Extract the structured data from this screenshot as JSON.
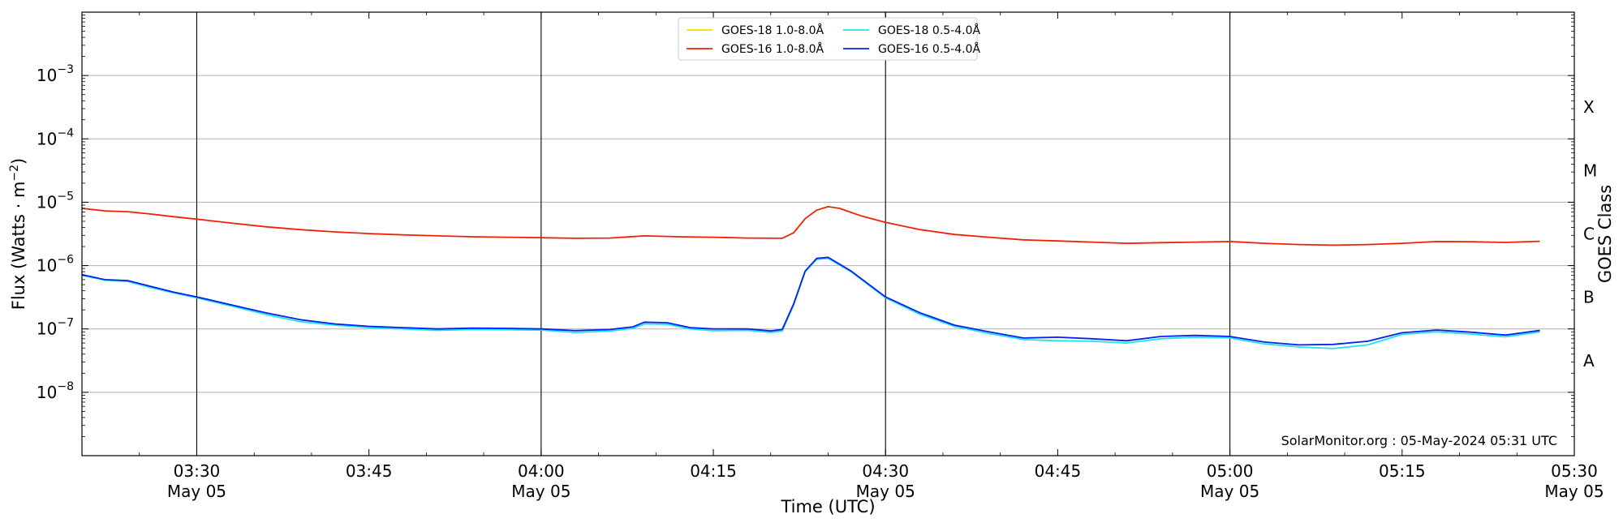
{
  "chart_data": {
    "type": "line",
    "title": "",
    "xlabel": "Time (UTC)",
    "ylabel": "Flux (Watts · m",
    "ylabel_superscript": "−2",
    "ylabel_close": ")",
    "y2label": "GOES Class",
    "yscale": "log",
    "ylim": [
      1e-09,
      0.01
    ],
    "xlim": [
      "2024-05-05 03:20",
      "2024-05-05 05:30"
    ],
    "grid": "horizontal",
    "legend_position": "top-center",
    "y_ticks": [
      {
        "value": 1e-08,
        "base": "10",
        "exp": "−8"
      },
      {
        "value": 1e-07,
        "base": "10",
        "exp": "−7"
      },
      {
        "value": 1e-06,
        "base": "10",
        "exp": "−6"
      },
      {
        "value": 1e-05,
        "base": "10",
        "exp": "−5"
      },
      {
        "value": 0.0001,
        "base": "10",
        "exp": "−4"
      },
      {
        "value": 0.001,
        "base": "10",
        "exp": "−3"
      }
    ],
    "x_ticks": [
      {
        "time": "03:30",
        "line1": "03:30",
        "line2": "May 05"
      },
      {
        "time": "03:45",
        "line1": "03:45",
        "line2": ""
      },
      {
        "time": "04:00",
        "line1": "04:00",
        "line2": "May 05"
      },
      {
        "time": "04:15",
        "line1": "04:15",
        "line2": ""
      },
      {
        "time": "04:30",
        "line1": "04:30",
        "line2": "May 05"
      },
      {
        "time": "04:45",
        "line1": "04:45",
        "line2": ""
      },
      {
        "time": "05:00",
        "line1": "05:00",
        "line2": "May 05"
      },
      {
        "time": "05:15",
        "line1": "05:15",
        "line2": ""
      },
      {
        "time": "05:30",
        "line1": "05:30",
        "line2": "May 05"
      }
    ],
    "vertical_lines": [
      "03:30",
      "04:00",
      "04:30",
      "05:00"
    ],
    "goes_classes": [
      {
        "label": "A",
        "value": 3.16e-08
      },
      {
        "label": "B",
        "value": 3.16e-07
      },
      {
        "label": "C",
        "value": 3.16e-06
      },
      {
        "label": "M",
        "value": 3.16e-05
      },
      {
        "label": "X",
        "value": 0.000316
      }
    ],
    "series": [
      {
        "name": "GOES-18 1.0-8.0Å",
        "color": "#ffd700",
        "x": [],
        "values": []
      },
      {
        "name": "GOES-16 1.0-8.0Å",
        "color": "#ee2200",
        "x": [
          "03:20",
          "03:22",
          "03:24",
          "03:26",
          "03:28",
          "03:30",
          "03:33",
          "03:36",
          "03:39",
          "03:42",
          "03:45",
          "03:48",
          "03:51",
          "03:54",
          "03:57",
          "04:00",
          "04:03",
          "04:06",
          "04:09",
          "04:12",
          "04:15",
          "04:18",
          "04:21",
          "04:22",
          "04:23",
          "04:24",
          "04:25",
          "04:26",
          "04:27",
          "04:28",
          "04:30",
          "04:33",
          "04:36",
          "04:39",
          "04:42",
          "04:45",
          "04:48",
          "04:51",
          "04:54",
          "04:57",
          "05:00",
          "05:03",
          "05:06",
          "05:09",
          "05:12",
          "05:15",
          "05:18",
          "05:21",
          "05:24",
          "05:27"
        ],
        "values": [
          8e-06,
          7.3e-06,
          7.1e-06,
          6.5e-06,
          5.9e-06,
          5.4e-06,
          4.7e-06,
          4.1e-06,
          3.7e-06,
          3.4e-06,
          3.2e-06,
          3.05e-06,
          2.95e-06,
          2.85e-06,
          2.8e-06,
          2.75e-06,
          2.7e-06,
          2.72e-06,
          2.95e-06,
          2.85e-06,
          2.8e-06,
          2.72e-06,
          2.7e-06,
          3.3e-06,
          5.5e-06,
          7.5e-06,
          8.5e-06,
          8e-06,
          6.9e-06,
          6e-06,
          4.8e-06,
          3.7e-06,
          3.1e-06,
          2.8e-06,
          2.55e-06,
          2.45e-06,
          2.35e-06,
          2.25e-06,
          2.3e-06,
          2.35e-06,
          2.4e-06,
          2.25e-06,
          2.15e-06,
          2.1e-06,
          2.15e-06,
          2.25e-06,
          2.4e-06,
          2.38e-06,
          2.32e-06,
          2.42e-06
        ]
      },
      {
        "name": "GOES-18 0.5-4.0Å",
        "color": "#22e0ee",
        "x": [
          "03:20",
          "03:22",
          "03:24",
          "03:26",
          "03:28",
          "03:30",
          "03:33",
          "03:36",
          "03:39",
          "03:42",
          "03:45",
          "03:48",
          "03:51",
          "03:54",
          "03:57",
          "04:00",
          "04:03",
          "04:06",
          "04:08",
          "04:09",
          "04:11",
          "04:13",
          "04:15",
          "04:18",
          "04:20",
          "04:21",
          "04:22",
          "04:23",
          "04:24",
          "04:25",
          "04:27",
          "04:30",
          "04:33",
          "04:36",
          "04:39",
          "04:42",
          "04:45",
          "04:48",
          "04:51",
          "04:54",
          "04:57",
          "05:00",
          "05:03",
          "05:06",
          "05:09",
          "05:12",
          "05:15",
          "05:18",
          "05:21",
          "05:24",
          "05:27"
        ],
        "values": [
          7e-07,
          5.9e-07,
          5.6e-07,
          4.5e-07,
          3.7e-07,
          3.1e-07,
          2.3e-07,
          1.7e-07,
          1.3e-07,
          1.15e-07,
          1.05e-07,
          1e-07,
          9.5e-08,
          9.8e-08,
          9.7e-08,
          9.6e-08,
          8.8e-08,
          9.3e-08,
          1.02e-07,
          1.2e-07,
          1.18e-07,
          1e-07,
          9.4e-08,
          9.5e-08,
          8.8e-08,
          9.3e-08,
          2.4e-07,
          8e-07,
          1.25e-06,
          1.3e-06,
          8e-07,
          3.1e-07,
          1.7e-07,
          1.1e-07,
          8.5e-08,
          6.8e-08,
          6.5e-08,
          6.4e-08,
          6e-08,
          7e-08,
          7.4e-08,
          7.2e-08,
          5.8e-08,
          5.2e-08,
          4.9e-08,
          5.6e-08,
          8.2e-08,
          9e-08,
          8.3e-08,
          7.5e-08,
          9e-08
        ]
      },
      {
        "name": "GOES-16 0.5-4.0Å",
        "color": "#0022ee",
        "x": [
          "03:20",
          "03:22",
          "03:24",
          "03:26",
          "03:28",
          "03:30",
          "03:33",
          "03:36",
          "03:39",
          "03:42",
          "03:45",
          "03:48",
          "03:51",
          "03:54",
          "03:57",
          "04:00",
          "04:03",
          "04:06",
          "04:08",
          "04:09",
          "04:11",
          "04:13",
          "04:15",
          "04:18",
          "04:20",
          "04:21",
          "04:22",
          "04:23",
          "04:24",
          "04:25",
          "04:27",
          "04:30",
          "04:33",
          "04:36",
          "04:39",
          "04:42",
          "04:45",
          "04:48",
          "04:51",
          "04:54",
          "04:57",
          "05:00",
          "05:03",
          "05:06",
          "05:09",
          "05:12",
          "05:15",
          "05:18",
          "05:21",
          "05:24",
          "05:27"
        ],
        "values": [
          7.2e-07,
          6e-07,
          5.8e-07,
          4.7e-07,
          3.8e-07,
          3.2e-07,
          2.4e-07,
          1.8e-07,
          1.4e-07,
          1.2e-07,
          1.1e-07,
          1.05e-07,
          1e-07,
          1.03e-07,
          1.02e-07,
          1e-07,
          9.4e-08,
          9.8e-08,
          1.08e-07,
          1.28e-07,
          1.25e-07,
          1.05e-07,
          1e-07,
          1e-07,
          9.3e-08,
          9.8e-08,
          2.5e-07,
          8.2e-07,
          1.3e-06,
          1.35e-06,
          8.2e-07,
          3.2e-07,
          1.8e-07,
          1.15e-07,
          9e-08,
          7.2e-08,
          7.4e-08,
          7e-08,
          6.5e-08,
          7.6e-08,
          7.9e-08,
          7.6e-08,
          6.2e-08,
          5.6e-08,
          5.7e-08,
          6.4e-08,
          8.7e-08,
          9.6e-08,
          8.9e-08,
          8e-08,
          9.5e-08
        ]
      }
    ],
    "watermark": "SolarMonitor.org : 05-May-2024 05:31 UTC"
  }
}
